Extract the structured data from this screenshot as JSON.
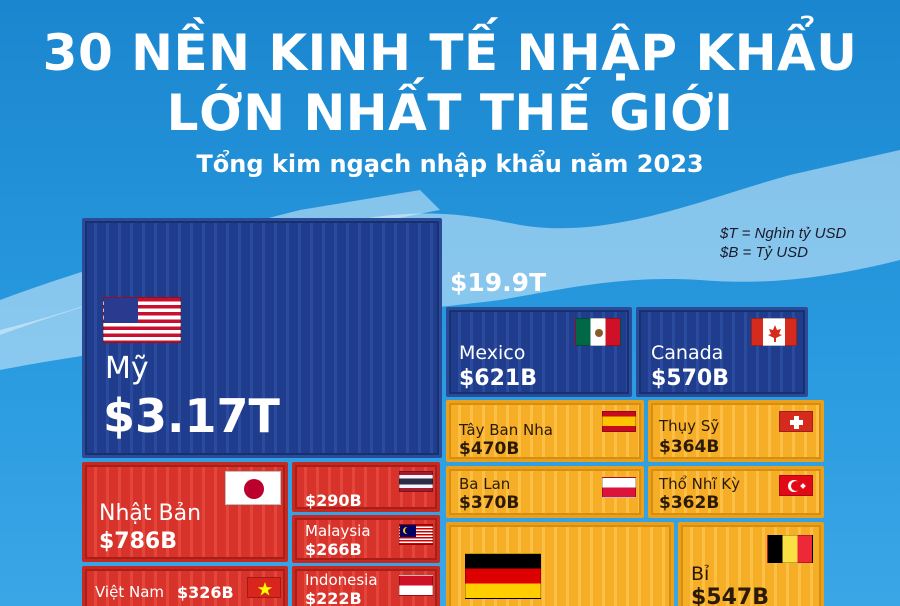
{
  "header": {
    "title_line1": "30 NỀN KINH TẾ NHẬP KHẨU",
    "title_line2": "LỚN NHẤT THẾ GIỚI",
    "subtitle": "Tổng kim ngạch nhập khẩu năm 2023",
    "unit_t": "$T = Nghìn tỷ USD",
    "unit_b": "$B = Tỷ USD",
    "total": "$19.9T"
  },
  "countries": {
    "us": {
      "name": "Mỹ",
      "value": "$3.17T"
    },
    "mexico": {
      "name": "Mexico",
      "value": "$621B"
    },
    "canada": {
      "name": "Canada",
      "value": "$570B"
    },
    "spain": {
      "name": "Tây Ban Nha",
      "value": "$470B"
    },
    "switzerland": {
      "name": "Thụy Sỹ",
      "value": "$364B"
    },
    "poland": {
      "name": "Ba Lan",
      "value": "$370B"
    },
    "turkey": {
      "name": "Thổ Nhĩ Kỳ",
      "value": "$362B"
    },
    "japan": {
      "name": "Nhật Bản",
      "value": "$786B"
    },
    "thailand": {
      "name": "",
      "value": "$290B"
    },
    "malaysia": {
      "name": "Malaysia",
      "value": "$266B"
    },
    "vietnam": {
      "name": "Việt Nam",
      "value": "$326B"
    },
    "indonesia": {
      "name": "Indonesia",
      "value": "$222B"
    },
    "germany": {
      "name": "",
      "value": ""
    },
    "belgium": {
      "name": "Bỉ",
      "value": "$547B"
    }
  },
  "colors": {
    "background": "#2a9be0",
    "americas": "#1f3d8c",
    "asia": "#d8332b",
    "europe": "#f6ae26"
  },
  "chart_data": {
    "type": "treemap",
    "title": "30 NỀN KINH TẾ NHẬP KHẨU LỚN NHẤT THẾ GIỚI",
    "subtitle": "Tổng kim ngạch nhập khẩu năm 2023",
    "total": "$19.9T",
    "unit": "USD",
    "series": [
      {
        "name": "",
        "color": "#1f3d8c",
        "items": [
          {
            "label": "Mỹ",
            "value": 3170
          },
          {
            "label": "Mexico",
            "value": 621
          },
          {
            "label": "Canada",
            "value": 570
          }
        ]
      },
      {
        "name": "",
        "color": "#d8332b",
        "items": [
          {
            "label": "Nhật Bản",
            "value": 786
          },
          {
            "label": "Việt Nam",
            "value": 326
          },
          {
            "label": "",
            "value": 290
          },
          {
            "label": "Malaysia",
            "value": 266
          },
          {
            "label": "Indonesia",
            "value": 222
          }
        ]
      },
      {
        "name": "",
        "color": "#f6ae26",
        "items": [
          {
            "label": "Bỉ",
            "value": 547
          },
          {
            "label": "Tây Ban Nha",
            "value": 470
          },
          {
            "label": "Ba Lan",
            "value": 370
          },
          {
            "label": "Thụy Sỹ",
            "value": 364
          },
          {
            "label": "Thổ Nhĩ Kỳ",
            "value": 362
          }
        ]
      }
    ]
  }
}
